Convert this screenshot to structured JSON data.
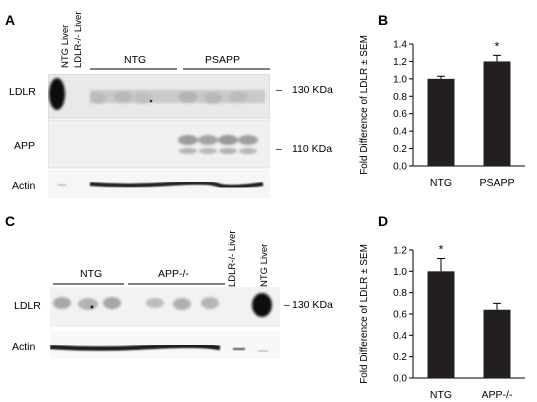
{
  "panels": {
    "a": {
      "letter": "A",
      "lane_headers": [
        "NTG Liver",
        "LDLR-/- Liver"
      ],
      "group_labels": [
        "NTG",
        "PSAPP"
      ],
      "rows": [
        {
          "label": "LDLR",
          "mw": "130 KDa"
        },
        {
          "label": "APP",
          "mw": "110 KDa"
        },
        {
          "label": "Actin",
          "mw": ""
        }
      ]
    },
    "b": {
      "letter": "B"
    },
    "c": {
      "letter": "C",
      "lane_headers": [
        "LDLR-/- Liver",
        "NTG Liver"
      ],
      "group_labels": [
        "NTG",
        "APP-/-"
      ],
      "rows": [
        {
          "label": "LDLR",
          "mw": "130 KDa"
        },
        {
          "label": "Actin",
          "mw": ""
        }
      ]
    },
    "d": {
      "letter": "D"
    }
  },
  "chart_data": [
    {
      "type": "bar",
      "categories": [
        "NTG",
        "PSAPP"
      ],
      "values": [
        1.0,
        1.2
      ],
      "errors": [
        0.03,
        0.07
      ],
      "significance": [
        "",
        "*"
      ],
      "ylabel": "Fold Difference of LDLR ± SEM",
      "ylim": [
        0,
        1.4
      ],
      "yticks": [
        "0.0",
        "0.2",
        "0.4",
        "0.6",
        "0.8",
        "1.0",
        "1.2",
        "1.4"
      ],
      "bar_color": "#231f20"
    },
    {
      "type": "bar",
      "categories": [
        "NTG",
        "APP-/-"
      ],
      "values": [
        1.0,
        0.64
      ],
      "errors": [
        0.12,
        0.06
      ],
      "significance": [
        "*",
        ""
      ],
      "ylabel": "Fold Difference of LDLR ± SEM",
      "ylim": [
        0,
        1.2
      ],
      "yticks": [
        "0.0",
        "0.2",
        "0.4",
        "0.6",
        "0.8",
        "1.0",
        "1.2"
      ],
      "bar_color": "#231f20"
    }
  ]
}
